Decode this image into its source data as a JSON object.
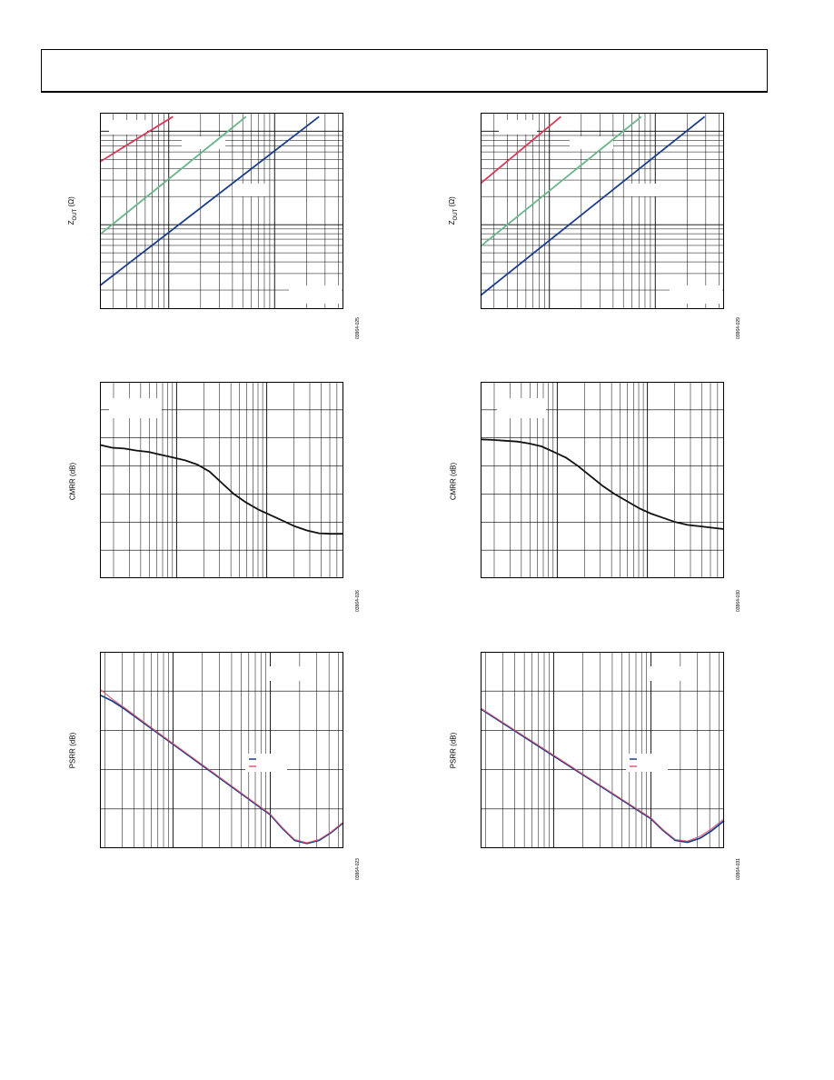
{
  "charts": [
    {
      "id": "zout-left",
      "ylabel_main": "Z",
      "ylabel_sub": "OUT",
      "ylabel_unit": " (Ω)",
      "fig_id": "03864-025",
      "legend_labels": []
    },
    {
      "id": "zout-right",
      "ylabel_main": "Z",
      "ylabel_sub": "OUT",
      "ylabel_unit": " (Ω)",
      "fig_id": "03864-029",
      "legend_labels": []
    },
    {
      "id": "cmrr-left",
      "ylabel_main": "CMRR (dB)",
      "ylabel_sub": "",
      "ylabel_unit": "",
      "fig_id": "03864-026",
      "legend_labels": []
    },
    {
      "id": "cmrr-right",
      "ylabel_main": "CMRR (dB)",
      "ylabel_sub": "",
      "ylabel_unit": "",
      "fig_id": "03864-030",
      "legend_labels": []
    },
    {
      "id": "psrr-left",
      "ylabel_main": "PSRR (dB)",
      "ylabel_sub": "",
      "ylabel_unit": "",
      "fig_id": "03864-023",
      "legend_labels": []
    },
    {
      "id": "psrr-right",
      "ylabel_main": "PSRR (dB)",
      "ylabel_sub": "",
      "ylabel_unit": "",
      "fig_id": "03864-031",
      "legend_labels": []
    }
  ],
  "chart_data": [
    {
      "type": "line",
      "ylabel": "ZOUT (Ω)",
      "xscale": "log",
      "yscale": "log",
      "xlim": [
        0,
        1
      ],
      "ylim": [
        0,
        1
      ],
      "grid": true,
      "series": [
        {
          "color": "#d63a5a",
          "x": [
            0.0,
            0.3
          ],
          "y": [
            0.75,
            0.98
          ]
        },
        {
          "color": "#6ab58a",
          "x": [
            0.0,
            0.6
          ],
          "y": [
            0.38,
            0.98
          ]
        },
        {
          "color": "#1a3c8c",
          "x": [
            0.0,
            0.9
          ],
          "y": [
            0.12,
            0.98
          ]
        }
      ]
    },
    {
      "type": "line",
      "ylabel": "ZOUT (Ω)",
      "xscale": "log",
      "yscale": "log",
      "xlim": [
        0,
        1
      ],
      "ylim": [
        0,
        1
      ],
      "grid": true,
      "series": [
        {
          "color": "#d63a5a",
          "x": [
            0.0,
            0.33
          ],
          "y": [
            0.64,
            0.98
          ]
        },
        {
          "color": "#6ab58a",
          "x": [
            0.0,
            0.66
          ],
          "y": [
            0.32,
            0.98
          ]
        },
        {
          "color": "#1a3c8c",
          "x": [
            0.0,
            0.92
          ],
          "y": [
            0.07,
            0.98
          ]
        }
      ]
    },
    {
      "type": "line",
      "ylabel": "CMRR (dB)",
      "xscale": "log",
      "xlim": [
        0,
        1
      ],
      "ylim": [
        0,
        7
      ],
      "grid": true,
      "series": [
        {
          "color": "#111111",
          "x": [
            0.0,
            0.05,
            0.1,
            0.15,
            0.2,
            0.25,
            0.3,
            0.35,
            0.4,
            0.45,
            0.5,
            0.55,
            0.6,
            0.65,
            0.7,
            0.75,
            0.8,
            0.85,
            0.9,
            0.95,
            1.0
          ],
          "y": [
            4.75,
            4.65,
            4.62,
            4.55,
            4.5,
            4.4,
            4.3,
            4.2,
            4.05,
            3.8,
            3.4,
            3.0,
            2.7,
            2.45,
            2.25,
            2.05,
            1.85,
            1.7,
            1.6,
            1.58,
            1.58
          ]
        }
      ]
    },
    {
      "type": "line",
      "ylabel": "CMRR (dB)",
      "xscale": "log",
      "xlim": [
        0,
        1
      ],
      "ylim": [
        0,
        7
      ],
      "grid": true,
      "series": [
        {
          "color": "#111111",
          "x": [
            0.0,
            0.05,
            0.1,
            0.15,
            0.2,
            0.25,
            0.3,
            0.35,
            0.4,
            0.45,
            0.5,
            0.55,
            0.6,
            0.65,
            0.7,
            0.75,
            0.8,
            0.85,
            0.9,
            0.95,
            1.0
          ],
          "y": [
            4.95,
            4.93,
            4.9,
            4.87,
            4.8,
            4.7,
            4.5,
            4.3,
            4.0,
            3.65,
            3.3,
            3.0,
            2.75,
            2.5,
            2.3,
            2.15,
            2.0,
            1.9,
            1.85,
            1.8,
            1.75
          ]
        }
      ]
    },
    {
      "type": "line",
      "ylabel": "PSRR (dB)",
      "xscale": "log",
      "xlim": [
        0,
        1
      ],
      "ylim": [
        0,
        5
      ],
      "grid": true,
      "series": [
        {
          "color": "#1a3c8c",
          "x": [
            0.0,
            0.05,
            0.1,
            0.2,
            0.3,
            0.4,
            0.5,
            0.6,
            0.7,
            0.75,
            0.8,
            0.85,
            0.9,
            0.95,
            1.0
          ],
          "y": [
            3.9,
            3.75,
            3.55,
            3.1,
            2.65,
            2.2,
            1.75,
            1.3,
            0.85,
            0.5,
            0.2,
            0.12,
            0.2,
            0.4,
            0.65
          ]
        },
        {
          "color": "#e05a70",
          "x": [
            0.0,
            0.05,
            0.1,
            0.2,
            0.3,
            0.4,
            0.5,
            0.6,
            0.7,
            0.75,
            0.8,
            0.85,
            0.9,
            0.95,
            1.0
          ],
          "y": [
            4.05,
            3.8,
            3.58,
            3.12,
            2.67,
            2.22,
            1.77,
            1.32,
            0.87,
            0.52,
            0.22,
            0.14,
            0.22,
            0.42,
            0.67
          ]
        }
      ]
    },
    {
      "type": "line",
      "ylabel": "PSRR (dB)",
      "xscale": "log",
      "xlim": [
        0,
        1
      ],
      "ylim": [
        0,
        5
      ],
      "grid": true,
      "series": [
        {
          "color": "#1a3c8c",
          "x": [
            0.0,
            0.05,
            0.1,
            0.2,
            0.3,
            0.4,
            0.5,
            0.6,
            0.7,
            0.75,
            0.8,
            0.85,
            0.9,
            0.95,
            1.0
          ],
          "y": [
            3.55,
            3.35,
            3.15,
            2.75,
            2.35,
            1.95,
            1.55,
            1.15,
            0.75,
            0.45,
            0.2,
            0.15,
            0.25,
            0.45,
            0.7
          ]
        },
        {
          "color": "#e05a70",
          "x": [
            0.0,
            0.05,
            0.1,
            0.2,
            0.3,
            0.4,
            0.5,
            0.6,
            0.7,
            0.75,
            0.8,
            0.85,
            0.9,
            0.95,
            1.0
          ],
          "y": [
            3.57,
            3.37,
            3.17,
            2.77,
            2.37,
            1.97,
            1.57,
            1.17,
            0.77,
            0.47,
            0.22,
            0.18,
            0.3,
            0.5,
            0.75
          ]
        }
      ]
    }
  ]
}
